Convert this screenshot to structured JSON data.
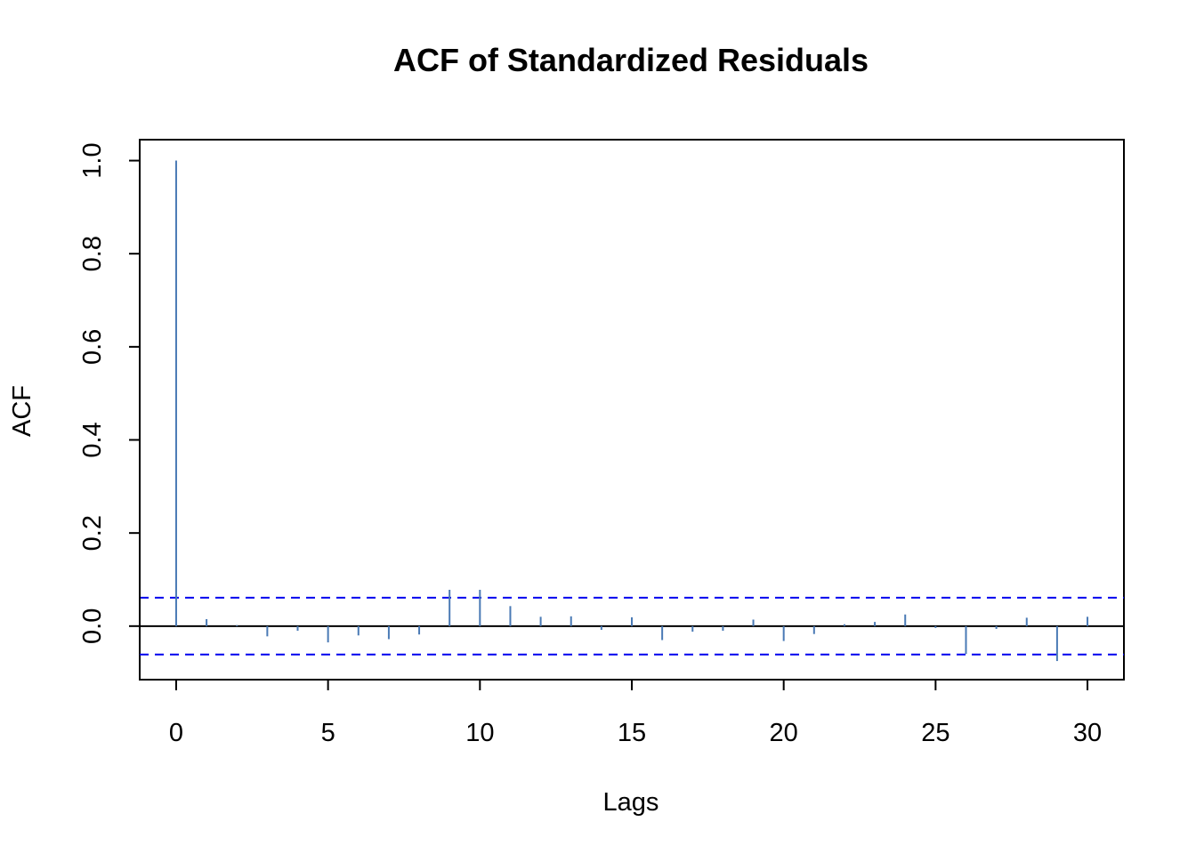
{
  "chart_data": {
    "type": "bar",
    "subtype": "acf-spike",
    "title": "ACF of Standardized Residuals",
    "xlabel": "Lags",
    "ylabel": "ACF",
    "xlim": [
      -1.2,
      31.2
    ],
    "ylim": [
      -0.115,
      1.045
    ],
    "x_ticks": [
      0,
      5,
      10,
      15,
      20,
      25,
      30
    ],
    "y_ticks": [
      0.0,
      0.2,
      0.4,
      0.6,
      0.8,
      1.0
    ],
    "x_tick_labels": [
      "0",
      "5",
      "10",
      "15",
      "20",
      "25",
      "30"
    ],
    "y_tick_labels": [
      "0.0",
      "0.2",
      "0.4",
      "0.6",
      "0.8",
      "1.0"
    ],
    "grid": false,
    "legend": "none",
    "lags": [
      0,
      1,
      2,
      3,
      4,
      5,
      6,
      7,
      8,
      9,
      10,
      11,
      12,
      13,
      14,
      15,
      16,
      17,
      18,
      19,
      20,
      21,
      22,
      23,
      24,
      25,
      26,
      27,
      28,
      29,
      30
    ],
    "values": [
      1.0,
      0.015,
      0.002,
      -0.022,
      -0.01,
      -0.035,
      -0.02,
      -0.028,
      -0.018,
      0.078,
      0.078,
      0.043,
      0.02,
      0.021,
      -0.008,
      0.019,
      -0.03,
      -0.012,
      -0.01,
      0.014,
      -0.032,
      -0.017,
      0.004,
      0.009,
      0.025,
      -0.004,
      -0.06,
      -0.006,
      0.018,
      -0.075,
      0.02
    ],
    "confidence_bounds": [
      -0.061,
      0.061
    ],
    "colors": {
      "spikes": "#4a7ab5",
      "bounds": "#0000ee",
      "zero_line": "#000000",
      "frame": "#000000"
    }
  }
}
